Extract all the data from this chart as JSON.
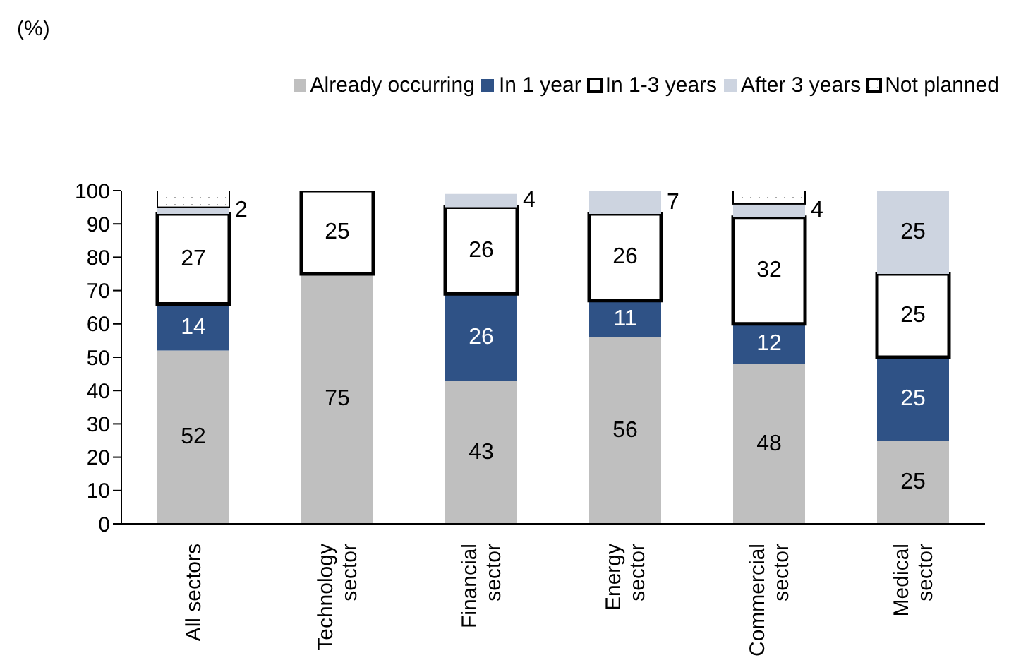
{
  "chart_data": {
    "type": "bar",
    "stacked": true,
    "annotations": [
      "(%)"
    ],
    "categories": [
      "All sectors",
      "Technology sector",
      "Financial sector",
      "Energy sector",
      "Commercial sector",
      "Medical sector"
    ],
    "series": [
      {
        "name": "Already occurring",
        "color": "#bfbfbf",
        "values": [
          52,
          75,
          43,
          56,
          48,
          25
        ],
        "value_labels": [
          "52",
          "75",
          "43",
          "56",
          "48",
          "25"
        ]
      },
      {
        "name": "In 1 year",
        "color": "#2f5286",
        "values": [
          14,
          null,
          26,
          11,
          12,
          25
        ],
        "value_labels": [
          "14",
          null,
          "26",
          "11",
          "12",
          "25"
        ]
      },
      {
        "name": "In 1-3 years",
        "color": "#ffffff",
        "values": [
          27,
          25,
          26,
          26,
          32,
          25
        ],
        "value_labels": [
          "27",
          "25",
          "26",
          "26",
          "32",
          "25"
        ]
      },
      {
        "name": "After 3 years",
        "color": "#cdd4e0",
        "values": [
          2,
          null,
          4,
          7,
          4,
          25
        ],
        "value_labels": [
          "2",
          null,
          "4",
          "7",
          "4",
          "25"
        ]
      },
      {
        "name": "Not planned",
        "color": "#ffffff",
        "values": [
          5,
          null,
          null,
          null,
          4,
          null
        ]
      }
    ],
    "ylim": [
      0,
      100
    ],
    "yticks": [
      0,
      10,
      20,
      30,
      40,
      50,
      60,
      70,
      80,
      90,
      100
    ],
    "grid": false,
    "legend": "top right"
  }
}
